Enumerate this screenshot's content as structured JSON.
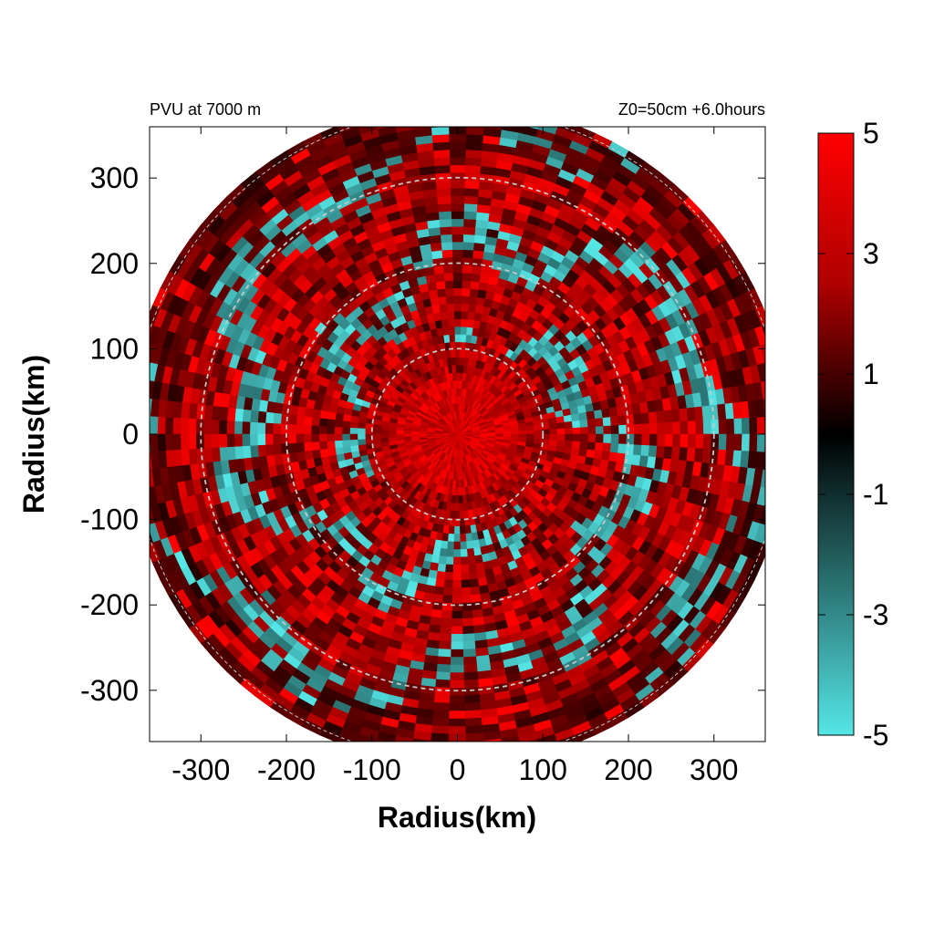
{
  "chart_data": {
    "type": "heatmap",
    "title_left": "PVU at  7000 m",
    "title_right": "Z0=50cm  +6.0hours",
    "xlabel": "Radius(km)",
    "ylabel": "Radius(km)",
    "xlim": [
      -360,
      360
    ],
    "ylim": [
      -360,
      360
    ],
    "x_ticks": [
      "-300",
      "-200",
      "-100",
      "0",
      "100",
      "200",
      "300"
    ],
    "y_ticks": [
      "300",
      "200",
      "100",
      "0",
      "-100",
      "-200",
      "-300"
    ],
    "x_tick_values": [
      -300,
      -200,
      -100,
      0,
      100,
      200,
      300
    ],
    "y_tick_values": [
      300,
      200,
      100,
      0,
      -100,
      -200,
      -300
    ],
    "domain_radius_km": 380,
    "reference_circles_km": [
      100,
      200,
      300
    ],
    "reference_circle_style": "dashed",
    "reference_circle_color": "#c8c8c8",
    "colorbar": {
      "range": [
        -5,
        5
      ],
      "tick_labels": [
        "5",
        "3",
        "1",
        "-1",
        "-3",
        "-5"
      ],
      "tick_values": [
        5,
        3,
        1,
        -1,
        -3,
        -5
      ],
      "color_max": "#ff0000",
      "color_zero": "#000000",
      "color_min": "#55e6e6"
    },
    "field_description": "mostly positive (red) in the inner 100 km core, alternating red and cyan rings at larger radii",
    "grid": false
  }
}
